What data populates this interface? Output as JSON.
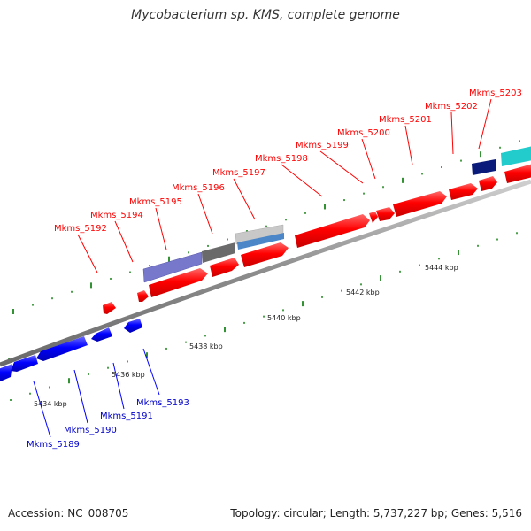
{
  "header": {
    "title": "Mycobacterium sp. KMS, complete genome"
  },
  "footer": {
    "accession": "Accession: NC_008705",
    "summary": "Topology: circular; Length: 5,737,227 bp; Genes: 5,516"
  },
  "colors": {
    "forward_gene": "#ff0000",
    "reverse_gene": "#0000ff",
    "backbone": "#888888",
    "tick": "#007700"
  },
  "ticks": [
    {
      "label": "5434 kbp"
    },
    {
      "label": "5436 kbp"
    },
    {
      "label": "5438 kbp"
    },
    {
      "label": "5440 kbp"
    },
    {
      "label": "5442 kbp"
    },
    {
      "label": "5444 kbp"
    }
  ],
  "forward_genes": [
    {
      "label": "Mkms_5192"
    },
    {
      "label": "Mkms_5194"
    },
    {
      "label": "Mkms_5195"
    },
    {
      "label": "Mkms_5196"
    },
    {
      "label": "Mkms_5197"
    },
    {
      "label": "Mkms_5198"
    },
    {
      "label": "Mkms_5199"
    },
    {
      "label": "Mkms_5200"
    },
    {
      "label": "Mkms_5201"
    },
    {
      "label": "Mkms_5202"
    },
    {
      "label": "Mkms_5203"
    }
  ],
  "reverse_genes": [
    {
      "label": "Mkms_5189"
    },
    {
      "label": "Mkms_5190"
    },
    {
      "label": "Mkms_5191"
    },
    {
      "label": "Mkms_5193"
    }
  ]
}
